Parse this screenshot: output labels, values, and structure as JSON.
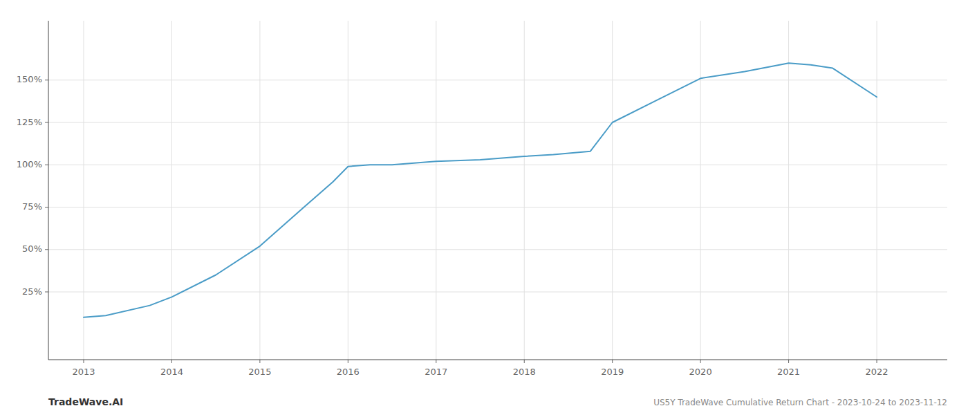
{
  "chart_data": {
    "type": "line",
    "x": [
      2013.0,
      2013.25,
      2013.75,
      2014.0,
      2014.5,
      2015.0,
      2015.5,
      2015.83,
      2016.0,
      2016.25,
      2016.5,
      2017.0,
      2017.5,
      2018.0,
      2018.33,
      2018.75,
      2019.0,
      2019.5,
      2020.0,
      2020.5,
      2021.0,
      2021.25,
      2021.5,
      2022.0
    ],
    "values": [
      10,
      11,
      17,
      22,
      35,
      52,
      75,
      90,
      99,
      100,
      100,
      102,
      103,
      105,
      106,
      108,
      125,
      138,
      151,
      155,
      160,
      159,
      157,
      140
    ],
    "color": "#4a9cc7",
    "xlim": [
      2012.6,
      2022.8
    ],
    "ylim": [
      -15,
      185
    ],
    "xticks": [
      2013,
      2014,
      2015,
      2016,
      2017,
      2018,
      2019,
      2020,
      2021,
      2022
    ],
    "yticks": [
      {
        "value": 25,
        "label": "25%"
      },
      {
        "value": 50,
        "label": "50%"
      },
      {
        "value": 75,
        "label": "75%"
      },
      {
        "value": 100,
        "label": "100%"
      },
      {
        "value": 125,
        "label": "125%"
      },
      {
        "value": 150,
        "label": "150%"
      }
    ],
    "grid": true,
    "annotations": [
      "TradeWave.AI",
      "US5Y TradeWave Cumulative Return Chart - 2023-10-24 to 2023-11-12"
    ]
  }
}
